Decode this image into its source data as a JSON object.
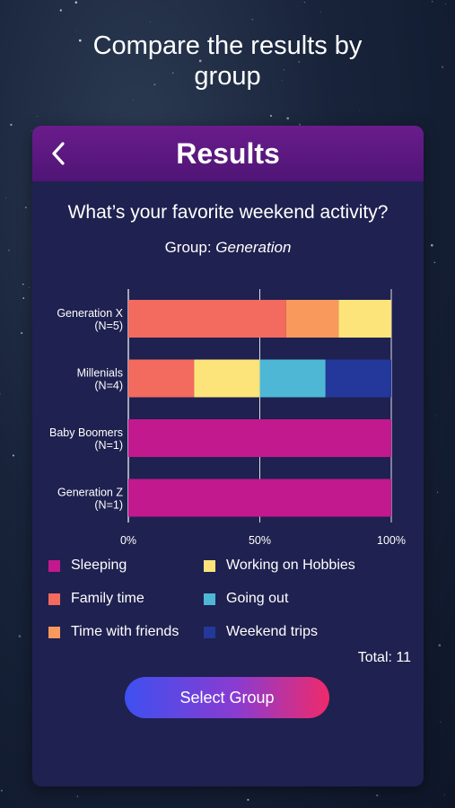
{
  "headline": "Compare the results by\ngroup",
  "header": {
    "title": "Results",
    "back_icon": "chevron-left-icon"
  },
  "question": "What’s your favorite weekend activity?",
  "group": {
    "label": "Group:",
    "value": "Generation"
  },
  "chart_data": {
    "type": "bar",
    "orientation": "horizontal",
    "stacked": true,
    "normalized": true,
    "categories": [
      "Generation X\n(N=5)",
      "Millenials\n(N=4)",
      "Baby Boomers\n(N=1)",
      "Generation Z\n(N=1)"
    ],
    "series": [
      {
        "name": "Sleeping",
        "color": "#c2198e",
        "values": [
          0,
          0,
          100,
          100
        ]
      },
      {
        "name": "Family time",
        "color": "#f36a5f",
        "values": [
          60,
          25,
          0,
          0
        ]
      },
      {
        "name": "Time with friends",
        "color": "#f99a5c",
        "values": [
          20,
          0,
          0,
          0
        ]
      },
      {
        "name": "Working on Hobbies",
        "color": "#fde47a",
        "values": [
          20,
          25,
          0,
          0
        ]
      },
      {
        "name": "Going out",
        "color": "#4fb7d6",
        "values": [
          0,
          25,
          0,
          0
        ]
      },
      {
        "name": "Weekend trips",
        "color": "#23389a",
        "values": [
          0,
          25,
          0,
          0
        ]
      }
    ],
    "xlim": [
      0,
      100
    ],
    "xticks": [
      "0%",
      "50%",
      "100%"
    ],
    "grid": true,
    "legend_position": "bottom"
  },
  "legend": [
    {
      "label": "Sleeping",
      "color": "#c2198e"
    },
    {
      "label": "Working on Hobbies",
      "color": "#fde47a"
    },
    {
      "label": "Family time",
      "color": "#f36a5f"
    },
    {
      "label": "Going out",
      "color": "#4fb7d6"
    },
    {
      "label": "Time with friends",
      "color": "#f99a5c"
    },
    {
      "label": "Weekend trips",
      "color": "#23389a"
    }
  ],
  "total": "Total: 11",
  "select_button": "Select Group"
}
